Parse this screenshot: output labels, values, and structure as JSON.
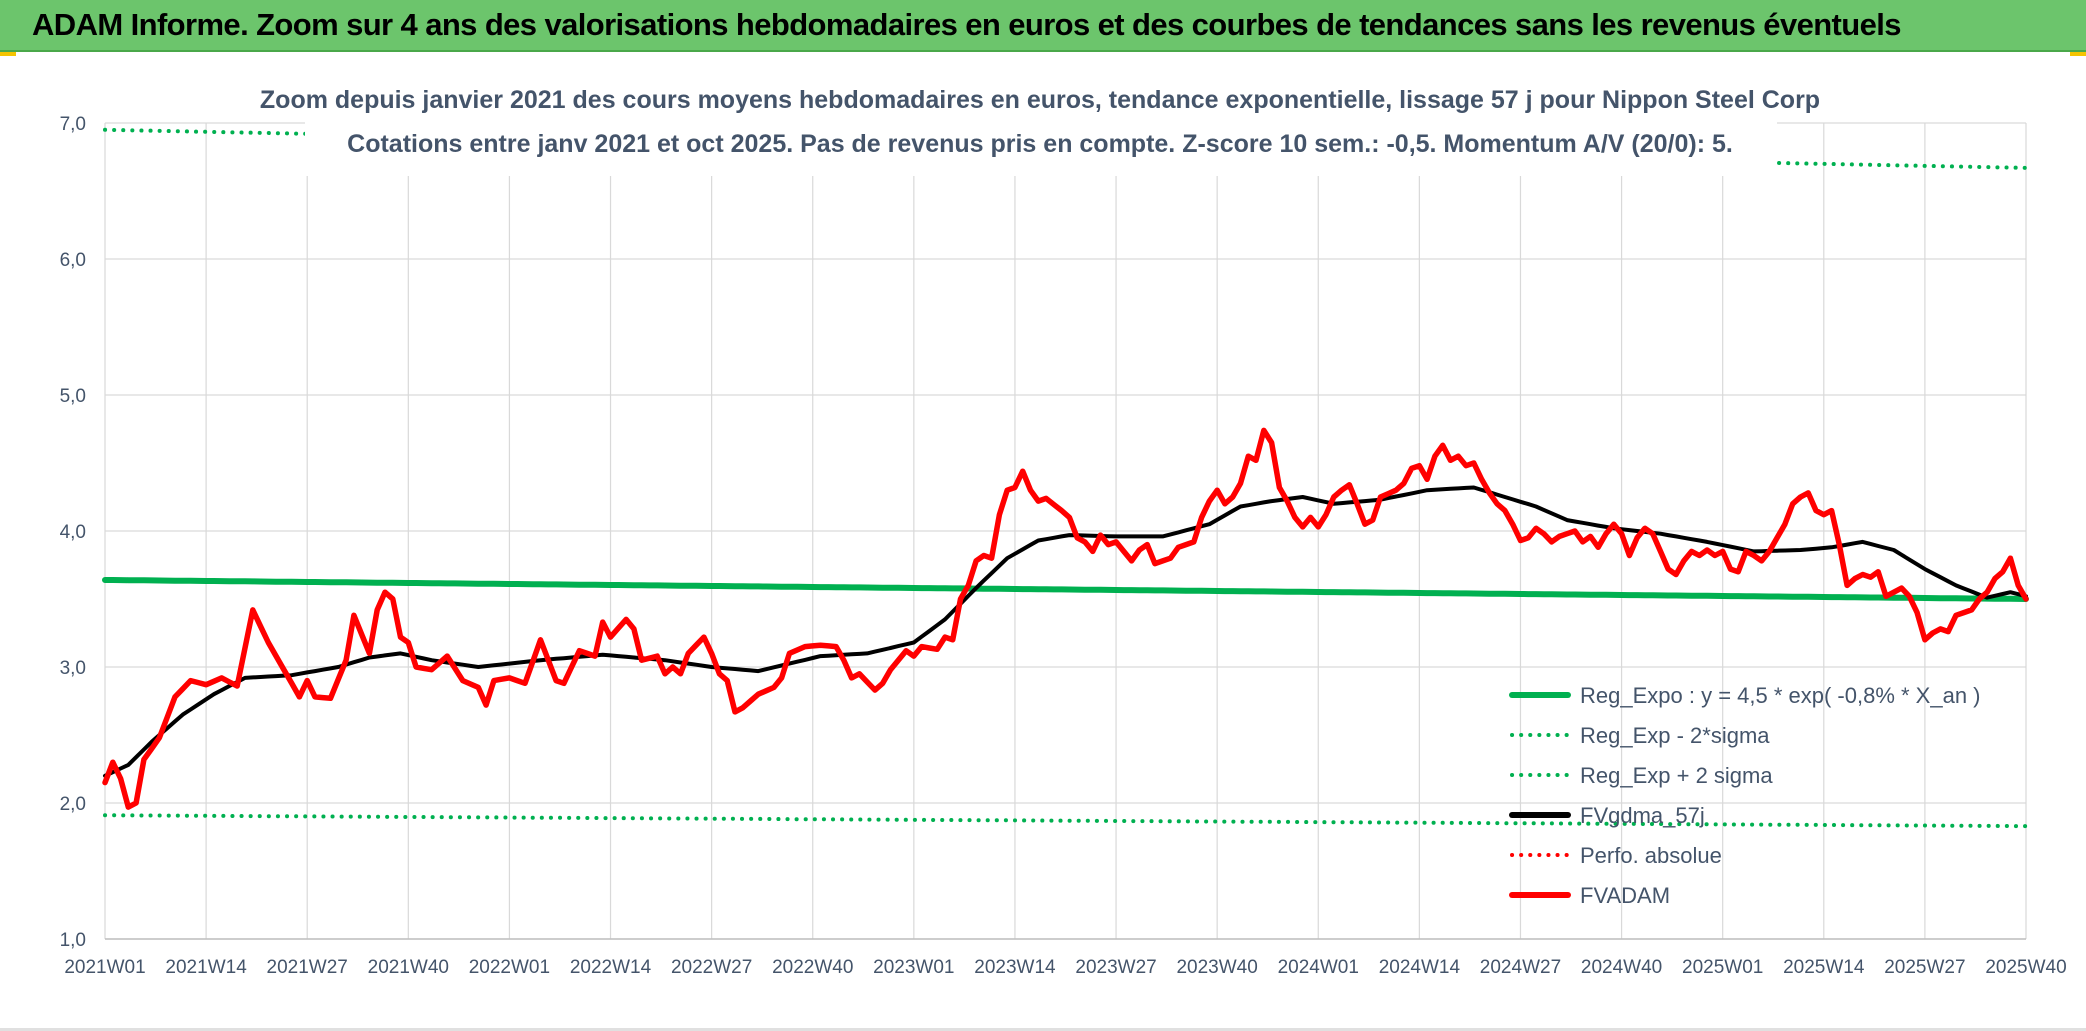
{
  "header": {
    "title": "ADAM Informe. Zoom sur 4 ans des valorisations hebdomadaires en euros et des courbes de tendances sans les revenus éventuels"
  },
  "chart_data": {
    "type": "line",
    "subtitle_line1": "Zoom depuis janvier 2021 des cours moyens hebdomadaires en euros, tendance exponentielle, lissage 57 j pour Nippon Steel Corp",
    "subtitle_line2": "Cotations entre janv 2021 et oct 2025. Pas de revenus pris en compte. Z-score 10 sem.: -0,5. Momentum A/V (20/0): 5.",
    "ylim": [
      1.0,
      7.0
    ],
    "y_ticks": [
      "1,0",
      "2,0",
      "3,0",
      "4,0",
      "5,0",
      "6,0",
      "7,0"
    ],
    "x_ticks": [
      "2021W01",
      "2021W14",
      "2021W27",
      "2021W40",
      "2022W01",
      "2022W14",
      "2022W27",
      "2022W40",
      "2023W01",
      "2023W14",
      "2023W27",
      "2023W40",
      "2024W01",
      "2024W14",
      "2024W27",
      "2024W40",
      "2025W01",
      "2025W14",
      "2025W27",
      "2025W40"
    ],
    "grid": "vertical and horizontal",
    "legend_position": "bottom-right",
    "colors": {
      "reg_expo": "#00b050",
      "sigma": "#00b050",
      "fvgdma": "#000000",
      "perfo": "#ff0000",
      "fvadam": "#ff0000",
      "axis_text": "#44546a",
      "grid": "#d9d9d9"
    },
    "series": [
      {
        "name": "Reg_Expo : y = 4,5 * exp( -0,8% *  X_an )",
        "style": "solid",
        "anchors": [
          [
            0,
            3.64
          ],
          [
            247,
            3.5
          ]
        ]
      },
      {
        "name": "Reg_Exp - 2*sigma",
        "style": "dotted",
        "anchors": [
          [
            0,
            1.91
          ],
          [
            247,
            1.83
          ]
        ]
      },
      {
        "name": "Reg_Exp + 2 sigma",
        "style": "dotted",
        "anchors": [
          [
            0,
            6.95
          ],
          [
            247,
            6.67
          ]
        ]
      },
      {
        "name": "FVgdma_57j",
        "style": "solid",
        "anchors": [
          [
            0,
            2.2
          ],
          [
            3,
            2.28
          ],
          [
            6,
            2.45
          ],
          [
            10,
            2.65
          ],
          [
            14,
            2.8
          ],
          [
            18,
            2.92
          ],
          [
            24,
            2.94
          ],
          [
            30,
            3.0
          ],
          [
            34,
            3.07
          ],
          [
            38,
            3.1
          ],
          [
            42,
            3.05
          ],
          [
            48,
            3.0
          ],
          [
            56,
            3.05
          ],
          [
            64,
            3.09
          ],
          [
            72,
            3.05
          ],
          [
            78,
            3.0
          ],
          [
            84,
            2.97
          ],
          [
            92,
            3.08
          ],
          [
            98,
            3.1
          ],
          [
            104,
            3.18
          ],
          [
            108,
            3.35
          ],
          [
            112,
            3.58
          ],
          [
            116,
            3.8
          ],
          [
            120,
            3.93
          ],
          [
            124,
            3.97
          ],
          [
            130,
            3.96
          ],
          [
            136,
            3.96
          ],
          [
            142,
            4.05
          ],
          [
            146,
            4.18
          ],
          [
            150,
            4.22
          ],
          [
            154,
            4.25
          ],
          [
            158,
            4.2
          ],
          [
            164,
            4.23
          ],
          [
            170,
            4.3
          ],
          [
            176,
            4.32
          ],
          [
            180,
            4.25
          ],
          [
            184,
            4.18
          ],
          [
            188,
            4.08
          ],
          [
            194,
            4.02
          ],
          [
            200,
            3.98
          ],
          [
            206,
            3.92
          ],
          [
            212,
            3.85
          ],
          [
            218,
            3.86
          ],
          [
            222,
            3.88
          ],
          [
            226,
            3.92
          ],
          [
            230,
            3.86
          ],
          [
            234,
            3.72
          ],
          [
            238,
            3.6
          ],
          [
            242,
            3.51
          ],
          [
            245,
            3.55
          ],
          [
            247,
            3.52
          ]
        ]
      },
      {
        "name": "Perfo. absolue",
        "style": "dotted",
        "anchors": []
      },
      {
        "name": "FVADAM",
        "style": "solid",
        "anchors": [
          [
            0,
            2.15
          ],
          [
            1,
            2.3
          ],
          [
            2,
            2.18
          ],
          [
            3,
            1.97
          ],
          [
            4,
            2.0
          ],
          [
            5,
            2.32
          ],
          [
            7,
            2.48
          ],
          [
            9,
            2.78
          ],
          [
            11,
            2.9
          ],
          [
            13,
            2.87
          ],
          [
            15,
            2.92
          ],
          [
            17,
            2.86
          ],
          [
            19,
            3.42
          ],
          [
            21,
            3.18
          ],
          [
            23,
            2.98
          ],
          [
            25,
            2.78
          ],
          [
            26,
            2.9
          ],
          [
            27,
            2.78
          ],
          [
            29,
            2.77
          ],
          [
            31,
            3.05
          ],
          [
            32,
            3.38
          ],
          [
            34,
            3.1
          ],
          [
            35,
            3.42
          ],
          [
            36,
            3.55
          ],
          [
            37,
            3.5
          ],
          [
            38,
            3.22
          ],
          [
            39,
            3.18
          ],
          [
            40,
            3.0
          ],
          [
            42,
            2.98
          ],
          [
            44,
            3.08
          ],
          [
            46,
            2.9
          ],
          [
            48,
            2.85
          ],
          [
            49,
            2.72
          ],
          [
            50,
            2.9
          ],
          [
            52,
            2.92
          ],
          [
            54,
            2.88
          ],
          [
            56,
            3.2
          ],
          [
            58,
            2.9
          ],
          [
            59,
            2.88
          ],
          [
            61,
            3.12
          ],
          [
            63,
            3.08
          ],
          [
            64,
            3.33
          ],
          [
            65,
            3.22
          ],
          [
            67,
            3.35
          ],
          [
            68,
            3.28
          ],
          [
            69,
            3.05
          ],
          [
            71,
            3.08
          ],
          [
            72,
            2.95
          ],
          [
            73,
            3.0
          ],
          [
            74,
            2.95
          ],
          [
            75,
            3.1
          ],
          [
            77,
            3.22
          ],
          [
            78,
            3.1
          ],
          [
            79,
            2.95
          ],
          [
            80,
            2.9
          ],
          [
            81,
            2.67
          ],
          [
            82,
            2.7
          ],
          [
            84,
            2.8
          ],
          [
            86,
            2.85
          ],
          [
            87,
            2.92
          ],
          [
            88,
            3.1
          ],
          [
            90,
            3.15
          ],
          [
            92,
            3.16
          ],
          [
            94,
            3.15
          ],
          [
            95,
            3.05
          ],
          [
            96,
            2.92
          ],
          [
            97,
            2.95
          ],
          [
            99,
            2.83
          ],
          [
            100,
            2.88
          ],
          [
            101,
            2.98
          ],
          [
            102,
            3.05
          ],
          [
            103,
            3.12
          ],
          [
            104,
            3.08
          ],
          [
            105,
            3.15
          ],
          [
            107,
            3.13
          ],
          [
            108,
            3.22
          ],
          [
            109,
            3.2
          ],
          [
            110,
            3.5
          ],
          [
            111,
            3.6
          ],
          [
            112,
            3.78
          ],
          [
            113,
            3.82
          ],
          [
            114,
            3.8
          ],
          [
            115,
            4.12
          ],
          [
            116,
            4.3
          ],
          [
            117,
            4.32
          ],
          [
            118,
            4.44
          ],
          [
            119,
            4.3
          ],
          [
            120,
            4.22
          ],
          [
            121,
            4.24
          ],
          [
            123,
            4.15
          ],
          [
            124,
            4.1
          ],
          [
            125,
            3.95
          ],
          [
            126,
            3.92
          ],
          [
            127,
            3.85
          ],
          [
            128,
            3.97
          ],
          [
            129,
            3.9
          ],
          [
            130,
            3.92
          ],
          [
            131,
            3.85
          ],
          [
            132,
            3.78
          ],
          [
            133,
            3.86
          ],
          [
            134,
            3.9
          ],
          [
            135,
            3.76
          ],
          [
            137,
            3.8
          ],
          [
            138,
            3.88
          ],
          [
            140,
            3.92
          ],
          [
            141,
            4.1
          ],
          [
            142,
            4.22
          ],
          [
            143,
            4.3
          ],
          [
            144,
            4.2
          ],
          [
            145,
            4.25
          ],
          [
            146,
            4.35
          ],
          [
            147,
            4.55
          ],
          [
            148,
            4.52
          ],
          [
            149,
            4.74
          ],
          [
            150,
            4.65
          ],
          [
            151,
            4.32
          ],
          [
            152,
            4.22
          ],
          [
            153,
            4.1
          ],
          [
            154,
            4.03
          ],
          [
            155,
            4.1
          ],
          [
            156,
            4.03
          ],
          [
            157,
            4.12
          ],
          [
            158,
            4.25
          ],
          [
            159,
            4.3
          ],
          [
            160,
            4.34
          ],
          [
            161,
            4.2
          ],
          [
            162,
            4.05
          ],
          [
            163,
            4.08
          ],
          [
            164,
            4.25
          ],
          [
            166,
            4.3
          ],
          [
            167,
            4.35
          ],
          [
            168,
            4.46
          ],
          [
            169,
            4.48
          ],
          [
            170,
            4.38
          ],
          [
            171,
            4.55
          ],
          [
            172,
            4.63
          ],
          [
            173,
            4.52
          ],
          [
            174,
            4.55
          ],
          [
            175,
            4.48
          ],
          [
            176,
            4.5
          ],
          [
            177,
            4.38
          ],
          [
            178,
            4.28
          ],
          [
            179,
            4.2
          ],
          [
            180,
            4.15
          ],
          [
            181,
            4.05
          ],
          [
            182,
            3.93
          ],
          [
            183,
            3.95
          ],
          [
            184,
            4.02
          ],
          [
            185,
            3.98
          ],
          [
            186,
            3.92
          ],
          [
            187,
            3.96
          ],
          [
            188,
            3.98
          ],
          [
            189,
            4.0
          ],
          [
            190,
            3.92
          ],
          [
            191,
            3.96
          ],
          [
            192,
            3.88
          ],
          [
            193,
            3.98
          ],
          [
            194,
            4.05
          ],
          [
            195,
            3.98
          ],
          [
            196,
            3.82
          ],
          [
            197,
            3.95
          ],
          [
            198,
            4.02
          ],
          [
            199,
            3.98
          ],
          [
            200,
            3.85
          ],
          [
            201,
            3.72
          ],
          [
            202,
            3.68
          ],
          [
            203,
            3.78
          ],
          [
            204,
            3.85
          ],
          [
            205,
            3.82
          ],
          [
            206,
            3.86
          ],
          [
            207,
            3.82
          ],
          [
            208,
            3.85
          ],
          [
            209,
            3.72
          ],
          [
            210,
            3.7
          ],
          [
            211,
            3.85
          ],
          [
            212,
            3.82
          ],
          [
            213,
            3.78
          ],
          [
            214,
            3.85
          ],
          [
            215,
            3.95
          ],
          [
            216,
            4.05
          ],
          [
            217,
            4.2
          ],
          [
            218,
            4.25
          ],
          [
            219,
            4.28
          ],
          [
            220,
            4.15
          ],
          [
            221,
            4.12
          ],
          [
            222,
            4.15
          ],
          [
            223,
            3.9
          ],
          [
            224,
            3.6
          ],
          [
            225,
            3.65
          ],
          [
            226,
            3.68
          ],
          [
            227,
            3.66
          ],
          [
            228,
            3.7
          ],
          [
            229,
            3.52
          ],
          [
            230,
            3.55
          ],
          [
            231,
            3.58
          ],
          [
            232,
            3.52
          ],
          [
            233,
            3.4
          ],
          [
            234,
            3.2
          ],
          [
            235,
            3.25
          ],
          [
            236,
            3.28
          ],
          [
            237,
            3.26
          ],
          [
            238,
            3.38
          ],
          [
            239,
            3.4
          ],
          [
            240,
            3.42
          ],
          [
            241,
            3.5
          ],
          [
            242,
            3.55
          ],
          [
            243,
            3.65
          ],
          [
            244,
            3.7
          ],
          [
            245,
            3.8
          ],
          [
            246,
            3.6
          ],
          [
            247,
            3.5
          ]
        ]
      }
    ]
  }
}
